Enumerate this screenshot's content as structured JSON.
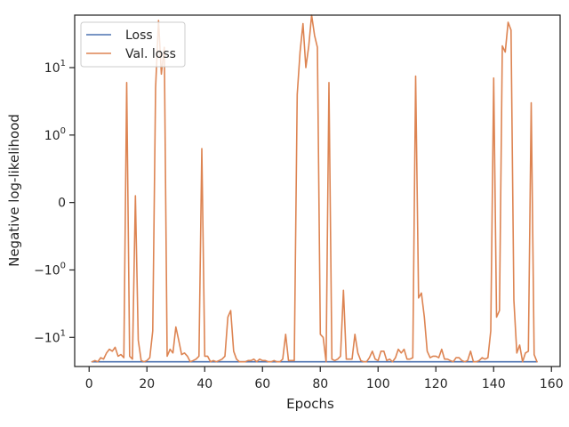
{
  "chart_data": {
    "type": "line",
    "xlabel": "Epochs",
    "ylabel": "Negative log-likelihood",
    "xlim": [
      -5,
      163
    ],
    "ylim": [
      -27,
      60
    ],
    "y_scale": "symlog",
    "linthresh": 1,
    "x_ticks": [
      0,
      20,
      40,
      60,
      80,
      100,
      120,
      140,
      160
    ],
    "y_ticks": [
      {
        "value": 10,
        "base": "10",
        "exp": "1"
      },
      {
        "value": 1,
        "base": "10",
        "exp": "0"
      },
      {
        "value": 0,
        "base": "0",
        "exp": ""
      },
      {
        "value": -1,
        "base": "−10",
        "exp": "0"
      },
      {
        "value": -10,
        "base": "−10",
        "exp": "1"
      }
    ],
    "grid": false,
    "legend": "top-left",
    "series": [
      {
        "name": "Loss",
        "color": "#4c72b0",
        "x": [
          1,
          155
        ],
        "y": [
          -23,
          -23
        ]
      },
      {
        "name": "Val. loss",
        "color": "#dd8452",
        "x": [
          1,
          2,
          3,
          4,
          5,
          6,
          7,
          8,
          9,
          10,
          11,
          12,
          13,
          14,
          15,
          16,
          17,
          18,
          19,
          20,
          21,
          22,
          23,
          24,
          25,
          26,
          27,
          28,
          29,
          30,
          31,
          32,
          33,
          34,
          35,
          36,
          37,
          38,
          39,
          40,
          41,
          42,
          43,
          44,
          45,
          46,
          47,
          48,
          49,
          50,
          51,
          52,
          53,
          54,
          55,
          56,
          57,
          58,
          59,
          60,
          61,
          62,
          63,
          64,
          65,
          66,
          67,
          68,
          69,
          70,
          71,
          72,
          73,
          74,
          75,
          76,
          77,
          78,
          79,
          80,
          81,
          82,
          83,
          84,
          85,
          86,
          87,
          88,
          89,
          90,
          91,
          92,
          93,
          94,
          95,
          96,
          97,
          98,
          99,
          100,
          101,
          102,
          103,
          104,
          105,
          106,
          107,
          108,
          109,
          110,
          111,
          112,
          113,
          114,
          115,
          116,
          117,
          118,
          119,
          120,
          121,
          122,
          123,
          124,
          125,
          126,
          127,
          128,
          129,
          130,
          131,
          132,
          133,
          134,
          135,
          136,
          137,
          138,
          139,
          140,
          141,
          142,
          143,
          144,
          145,
          146,
          147,
          148,
          149,
          150,
          151,
          152,
          153,
          154,
          155
        ],
        "y": [
          -23,
          -22,
          -23,
          -20,
          -21,
          -17,
          -15,
          -16,
          -14,
          -19,
          -18,
          -20,
          6,
          -19,
          -21,
          0.1,
          -11,
          -22,
          -23,
          -22,
          -20,
          -8,
          5,
          50,
          8,
          20,
          -19,
          -15,
          -17,
          -7,
          -11,
          -18,
          -17,
          -19,
          -23,
          -22,
          -21,
          -19,
          0.8,
          -19,
          -19,
          -23,
          -22,
          -23,
          -22,
          -21,
          -19,
          -5,
          -4,
          -16,
          -21,
          -23,
          -23,
          -23,
          -22,
          -22,
          -21,
          -23,
          -21,
          -22,
          -22,
          -23,
          -23,
          -22,
          -23,
          -23,
          -21,
          -9,
          -22,
          -22,
          -22,
          4,
          17,
          45,
          10,
          21,
          60,
          30,
          20,
          -9,
          -10,
          -23,
          6,
          -21,
          -22,
          -21,
          -19,
          -2,
          -21,
          -21,
          -21,
          -9,
          -17,
          -22,
          -23,
          -23,
          -20,
          -16,
          -21,
          -22,
          -16,
          -16,
          -22,
          -21,
          -23,
          -20,
          -15,
          -17,
          -15,
          -21,
          -21,
          -20,
          7.5,
          -2.6,
          -2.2,
          -5,
          -16,
          -20,
          -19,
          -19,
          -20,
          -15,
          -21,
          -21,
          -22,
          -23,
          -20,
          -20,
          -22,
          -23,
          -22,
          -16,
          -23,
          -23,
          -22,
          -20,
          -21,
          -20,
          -8,
          7,
          -5,
          -4,
          21,
          17,
          47,
          36,
          -2.8,
          -17,
          -13,
          -23,
          -17,
          -16,
          3,
          -18,
          -23
        ]
      }
    ]
  }
}
